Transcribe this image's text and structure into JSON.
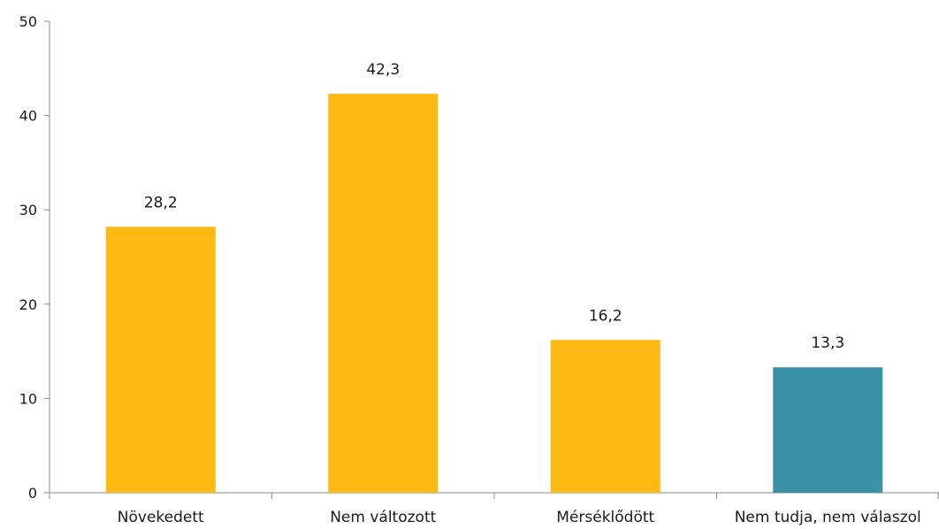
{
  "chart_data": {
    "type": "bar",
    "title": "",
    "xlabel": "",
    "ylabel": "",
    "categories": [
      "Növekedett",
      "Nem változott",
      "Mérséklődött",
      "Nem tudja, nem válaszol"
    ],
    "values": [
      28.2,
      42.3,
      16.2,
      13.3
    ],
    "value_labels": [
      "28,2",
      "42,3",
      "16,2",
      "13,3"
    ],
    "bar_colors": [
      "#FDB913",
      "#FDB913",
      "#FDB913",
      "#3A91A8"
    ],
    "ylim": [
      0,
      50
    ],
    "yticks": [
      0,
      10,
      20,
      30,
      40,
      50
    ],
    "ytick_labels": [
      "0",
      "10",
      "20",
      "30",
      "40",
      "50"
    ],
    "grid": false,
    "legend": "none"
  }
}
